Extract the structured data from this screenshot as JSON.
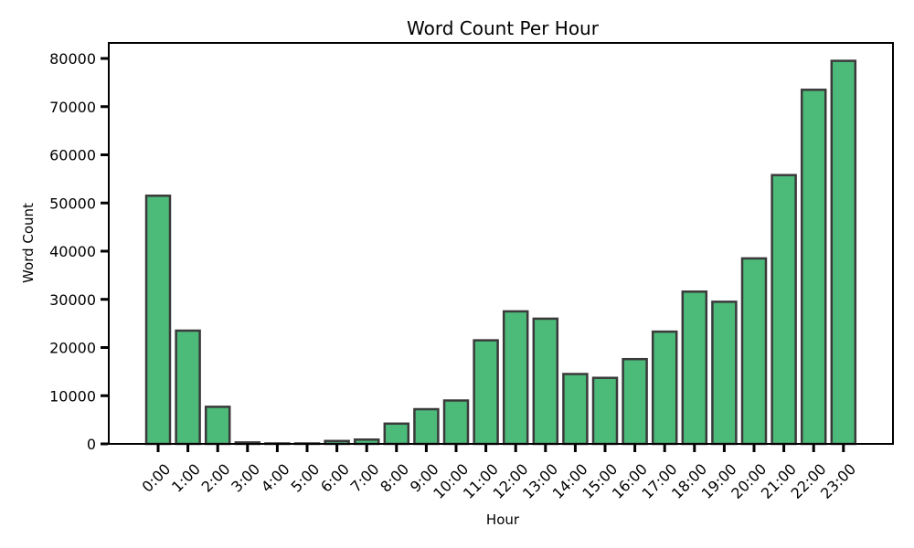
{
  "chart_data": {
    "type": "bar",
    "title": "Word Count Per Hour",
    "xlabel": "Hour",
    "ylabel": "Word Count",
    "categories": [
      "0:00",
      "1:00",
      "2:00",
      "3:00",
      "4:00",
      "5:00",
      "6:00",
      "7:00",
      "8:00",
      "9:00",
      "10:00",
      "11:00",
      "12:00",
      "13:00",
      "14:00",
      "15:00",
      "16:00",
      "17:00",
      "18:00",
      "19:00",
      "20:00",
      "21:00",
      "22:00",
      "23:00"
    ],
    "values": [
      51500,
      23500,
      7700,
      300,
      100,
      100,
      600,
      900,
      4200,
      7200,
      9000,
      21500,
      27500,
      26000,
      14500,
      13700,
      17600,
      23300,
      31600,
      29500,
      38500,
      55800,
      73500,
      79500
    ],
    "ylim": [
      0,
      80000
    ],
    "yticks": [
      "0",
      "10000",
      "20000",
      "30000",
      "40000",
      "50000",
      "60000",
      "70000",
      "80000"
    ],
    "bar_color": "#4cba79",
    "edge_color": "#3a3a3a",
    "grid": false
  }
}
